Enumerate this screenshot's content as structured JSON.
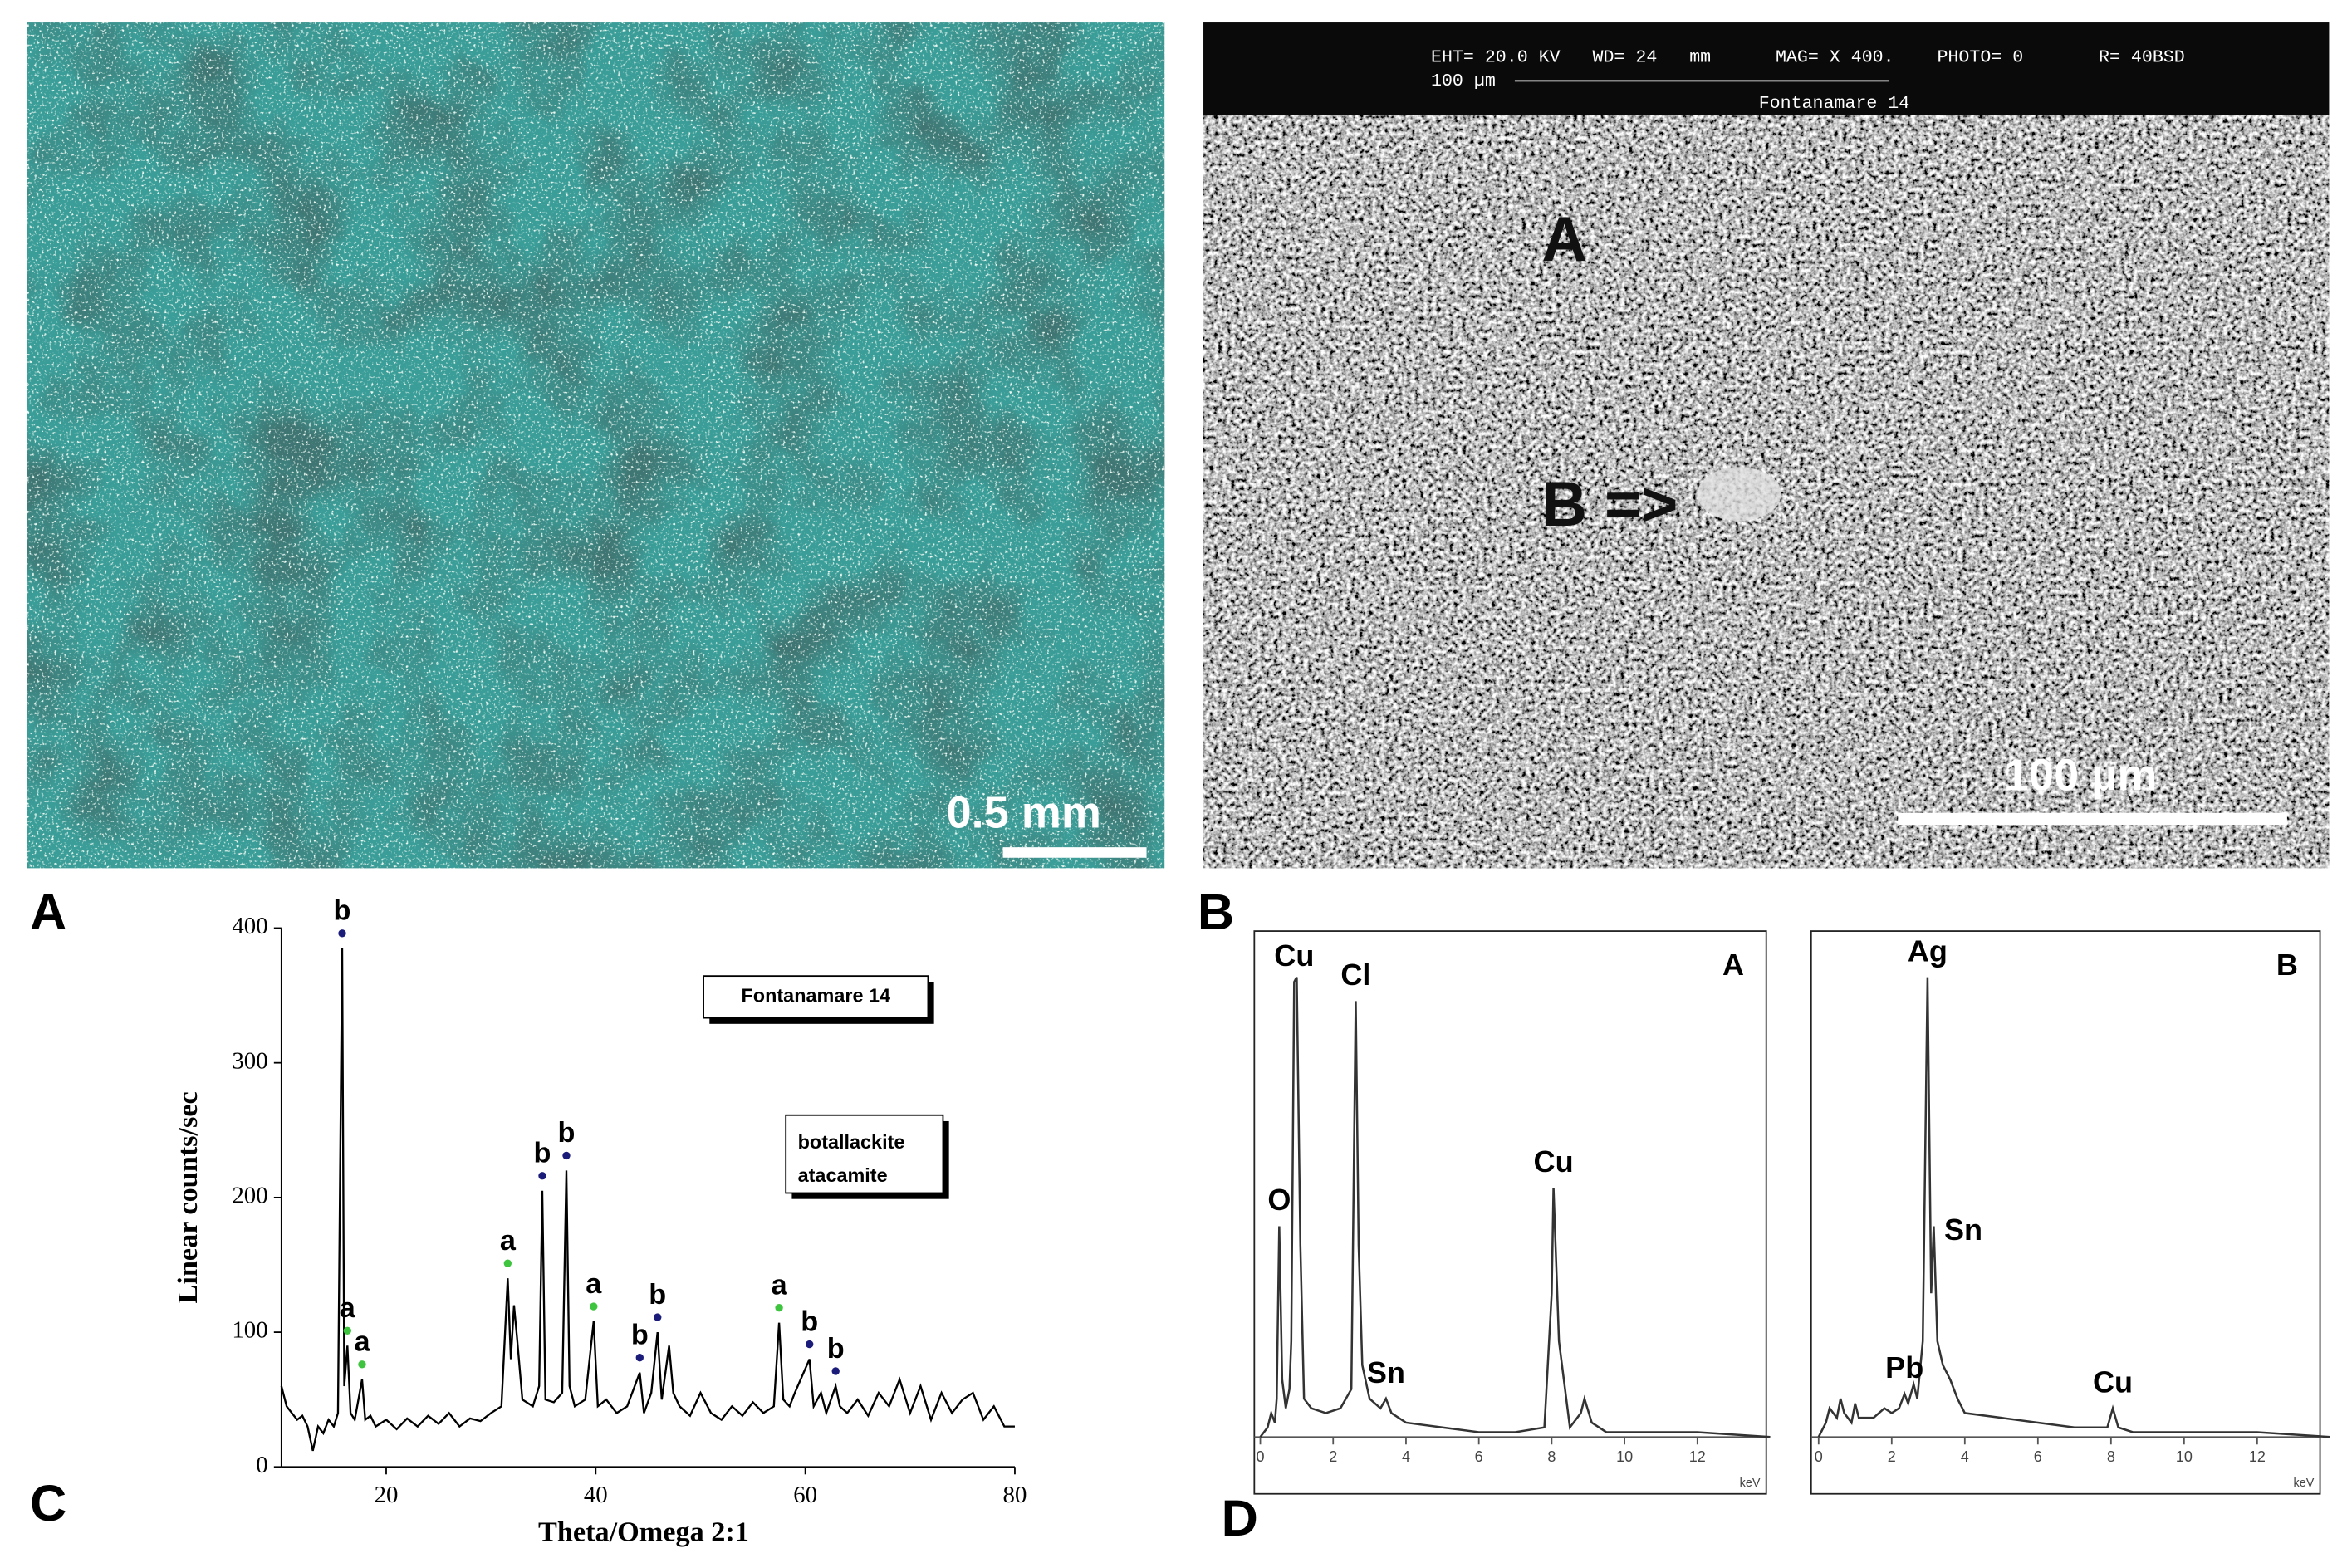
{
  "figure_labels": [
    "A",
    "B",
    "C",
    "D"
  ],
  "photo_a": {
    "scale_bar": "0.5 mm"
  },
  "photo_b": {
    "header": {
      "line1": "EHT= 20.0 KV   WD= 24   mm      MAG= X 400.    PHOTO= 0       R= 40BSD",
      "scale": "100 µm",
      "sample": "Fontanamare 14"
    },
    "markers": [
      "A",
      "B =>"
    ],
    "scale_bar": "100 µm"
  },
  "chart_data": [
    {
      "type": "line",
      "label": "C",
      "title": "Fontanamare 14",
      "legend_lines": [
        "botallackite",
        "atacamite"
      ],
      "x_label": "Theta/Omega 2:1",
      "y_label": "Linear counts/sec",
      "xlim": [
        10,
        80
      ],
      "xticks": [
        20,
        40,
        60,
        80
      ],
      "ylim": [
        0,
        400
      ],
      "yticks": [
        0,
        100,
        200,
        300,
        400
      ],
      "color": "#000000",
      "x": [
        10,
        10.5,
        11,
        11.5,
        12,
        12.5,
        13,
        13.5,
        14,
        14.5,
        15,
        15.4,
        15.6,
        15.8,
        16,
        16.3,
        16.6,
        17,
        17.7,
        18,
        18.5,
        19,
        20,
        21,
        22,
        23,
        24,
        25,
        26,
        27,
        28,
        29,
        30,
        31,
        31.6,
        31.9,
        32.2,
        32.5,
        33,
        34,
        34.6,
        34.9,
        35.2,
        36,
        36.8,
        37.2,
        37.5,
        38,
        39,
        39.8,
        40.2,
        41,
        42,
        43,
        44.2,
        44.6,
        45.3,
        45.9,
        46.3,
        47,
        47.4,
        48,
        49,
        50,
        51,
        52,
        53,
        54,
        55,
        56,
        57,
        57.5,
        57.9,
        58.5,
        59,
        60.4,
        60.8,
        61.5,
        62,
        62.9,
        63.3,
        64,
        65,
        66,
        67,
        68,
        69,
        70,
        71,
        72,
        73,
        74,
        75,
        76,
        77,
        78,
        79,
        80
      ],
      "values": [
        60,
        45,
        40,
        35,
        38,
        30,
        12,
        30,
        25,
        35,
        30,
        40,
        215,
        385,
        60,
        90,
        40,
        35,
        65,
        35,
        38,
        30,
        35,
        28,
        36,
        30,
        38,
        32,
        40,
        30,
        36,
        34,
        40,
        45,
        140,
        80,
        120,
        95,
        50,
        45,
        60,
        205,
        50,
        48,
        55,
        220,
        60,
        45,
        50,
        108,
        45,
        50,
        40,
        45,
        70,
        40,
        55,
        100,
        50,
        90,
        55,
        45,
        38,
        55,
        40,
        35,
        45,
        38,
        48,
        40,
        45,
        107,
        50,
        45,
        55,
        80,
        45,
        55,
        40,
        60,
        45,
        40,
        50,
        38,
        55,
        45,
        65,
        40,
        60,
        35,
        55,
        40,
        50,
        55,
        35,
        45,
        30,
        30
      ],
      "annotations": [
        {
          "text": "b",
          "x": 15.8,
          "color": "#1b1b7a"
        },
        {
          "text": "a",
          "x": 16.3,
          "color": "#3ec43e"
        },
        {
          "text": "a",
          "x": 17.7,
          "color": "#3ec43e"
        },
        {
          "text": "a",
          "x": 31.6,
          "color": "#3ec43e"
        },
        {
          "text": "b",
          "x": 34.9,
          "color": "#1b1b7a"
        },
        {
          "text": "b",
          "x": 37.2,
          "color": "#1b1b7a"
        },
        {
          "text": "a",
          "x": 39.8,
          "color": "#3ec43e"
        },
        {
          "text": "b",
          "x": 44.2,
          "color": "#1b1b7a"
        },
        {
          "text": "b",
          "x": 45.9,
          "color": "#1b1b7a"
        },
        {
          "text": "a",
          "x": 57.5,
          "color": "#3ec43e"
        },
        {
          "text": "b",
          "x": 60.4,
          "color": "#1b1b7a"
        },
        {
          "text": "b",
          "x": 62.9,
          "color": "#1b1b7a"
        }
      ]
    },
    {
      "type": "line",
      "label": "A",
      "x_label": "keV",
      "xlim": [
        0,
        14
      ],
      "xticks": [
        0,
        2,
        4,
        6,
        8,
        10,
        12
      ],
      "ylim": [
        0,
        100
      ],
      "color": "#333333",
      "x": [
        0,
        0.2,
        0.3,
        0.4,
        0.45,
        0.52,
        0.6,
        0.7,
        0.8,
        0.85,
        0.93,
        1.0,
        1.1,
        1.2,
        1.4,
        1.8,
        2.2,
        2.5,
        2.62,
        2.7,
        2.8,
        3.0,
        3.3,
        3.45,
        3.6,
        4,
        5,
        6,
        7,
        7.8,
        8.0,
        8.05,
        8.2,
        8.5,
        8.8,
        8.9,
        9.1,
        9.5,
        10,
        12,
        14
      ],
      "values": [
        0,
        2,
        5,
        3,
        8,
        44,
        12,
        6,
        10,
        20,
        95,
        96,
        40,
        8,
        6,
        5,
        6,
        10,
        91,
        40,
        15,
        8,
        6,
        8,
        5,
        3,
        2,
        1,
        1,
        2,
        30,
        52,
        20,
        2,
        5,
        8,
        3,
        1,
        1,
        1,
        0
      ],
      "annotations": [
        {
          "text": "O",
          "x": 0.52
        },
        {
          "text": "Cu",
          "x": 0.93
        },
        {
          "text": "Cl",
          "x": 2.62
        },
        {
          "text": "Sn",
          "x": 3.45
        },
        {
          "text": "Cu",
          "x": 8.05
        }
      ]
    },
    {
      "type": "line",
      "label": "B",
      "x_label": "keV",
      "xlim": [
        0,
        14
      ],
      "xticks": [
        0,
        2,
        4,
        6,
        8,
        10,
        12
      ],
      "ylim": [
        0,
        100
      ],
      "color": "#333333",
      "x": [
        0,
        0.2,
        0.3,
        0.5,
        0.6,
        0.7,
        0.9,
        1.0,
        1.1,
        1.5,
        1.8,
        2.0,
        2.2,
        2.35,
        2.45,
        2.6,
        2.7,
        2.85,
        2.98,
        3.08,
        3.15,
        3.25,
        3.4,
        3.6,
        3.8,
        4,
        5,
        6,
        7,
        7.9,
        8.05,
        8.2,
        8.6,
        9,
        10,
        12,
        14
      ],
      "values": [
        0,
        3,
        6,
        4,
        8,
        5,
        3,
        7,
        4,
        4,
        6,
        5,
        6,
        9,
        7,
        11,
        8,
        20,
        96,
        30,
        44,
        20,
        15,
        12,
        8,
        5,
        4,
        3,
        2,
        2,
        6,
        2,
        1,
        1,
        1,
        1,
        0
      ],
      "annotations": [
        {
          "text": "Pb",
          "x": 2.35
        },
        {
          "text": "Ag",
          "x": 2.98
        },
        {
          "text": "Sn",
          "x": 3.15
        },
        {
          "text": "Cu",
          "x": 8.05
        }
      ]
    }
  ]
}
